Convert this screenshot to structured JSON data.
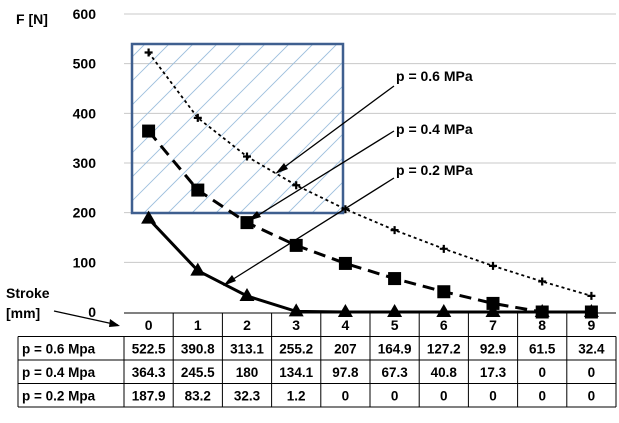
{
  "chart_data": {
    "type": "line",
    "title": "",
    "ylabel": "F [N]",
    "xlabel_lines": [
      "Stroke",
      "[mm]"
    ],
    "x": [
      0,
      1,
      2,
      3,
      4,
      5,
      6,
      7,
      8,
      9
    ],
    "ylim": [
      0,
      600
    ],
    "yticks": [
      0,
      100,
      200,
      300,
      400,
      500,
      600
    ],
    "grid": "horizontal",
    "series": [
      {
        "name": "p = 0.6 Mpa",
        "values": [
          522.5,
          390.8,
          313.1,
          255.2,
          207,
          164.9,
          127.2,
          92.9,
          61.5,
          32.4
        ],
        "style": "dotted",
        "marker": "plus"
      },
      {
        "name": "p = 0.4 Mpa",
        "values": [
          364.3,
          245.5,
          180,
          134.1,
          97.8,
          67.3,
          40.8,
          17.3,
          0,
          0
        ],
        "style": "dashed",
        "marker": "square"
      },
      {
        "name": "p = 0.2 Mpa",
        "values": [
          187.9,
          83.2,
          32.3,
          1.2,
          0,
          0,
          0,
          0,
          0,
          0
        ],
        "style": "solid",
        "marker": "triangle"
      }
    ],
    "annotations": [
      "p = 0.6 MPa",
      "p = 0.4 MPa",
      "p = 0.2  MPa"
    ],
    "table": {
      "rows": [
        {
          "label": "p = 0.6 Mpa",
          "cells": [
            "522.5",
            "390.8",
            "313.1",
            "255.2",
            "207",
            "164.9",
            "127.2",
            "92.9",
            "61.5",
            "32.4"
          ]
        },
        {
          "label": "p = 0.4 Mpa",
          "cells": [
            "364.3",
            "245.5",
            "180",
            "134.1",
            "97.8",
            "67.3",
            "40.8",
            "17.3",
            "0",
            "0"
          ]
        },
        {
          "label": "p = 0.2 Mpa",
          "cells": [
            "187.9",
            "83.2",
            "32.3",
            "1.2",
            "0",
            "0",
            "0",
            "0",
            "0",
            "0"
          ]
        }
      ]
    },
    "colors": {
      "line": "#000000",
      "grid": "#c8c8c8",
      "box": "#3f5f8f",
      "hatch": "#9dbfdd"
    }
  }
}
